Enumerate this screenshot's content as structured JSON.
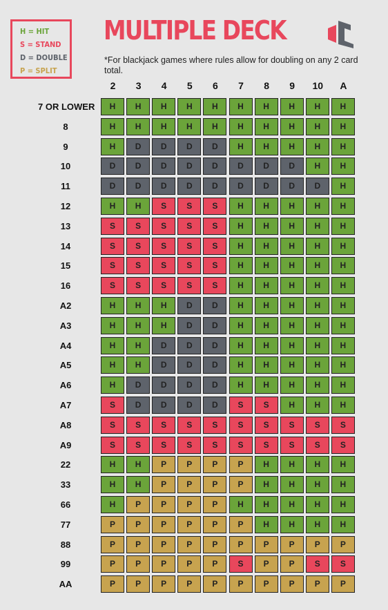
{
  "legend": [
    {
      "text": "H = HIT",
      "color": "#6ba43a"
    },
    {
      "text": "S = STAND",
      "color": "#e8475c"
    },
    {
      "text": "D = DOUBLE",
      "color": "#5e636b"
    },
    {
      "text": "P = SPLIT",
      "color": "#c7a34f"
    }
  ],
  "title": "MULTIPLE DECK",
  "note": "*For blackjack games where rules allow for doubling on any 2 card total.",
  "colors": {
    "H": "#6ba43a",
    "S": "#e8475c",
    "D": "#5e636b",
    "P": "#c7a34f"
  },
  "columns": [
    "2",
    "3",
    "4",
    "5",
    "6",
    "7",
    "8",
    "9",
    "10",
    "A"
  ],
  "rows": [
    {
      "label": "7 OR LOWER",
      "cells": [
        "H",
        "H",
        "H",
        "H",
        "H",
        "H",
        "H",
        "H",
        "H",
        "H"
      ]
    },
    {
      "label": "8",
      "cells": [
        "H",
        "H",
        "H",
        "H",
        "H",
        "H",
        "H",
        "H",
        "H",
        "H"
      ]
    },
    {
      "label": "9",
      "cells": [
        "H",
        "D",
        "D",
        "D",
        "D",
        "H",
        "H",
        "H",
        "H",
        "H"
      ]
    },
    {
      "label": "10",
      "cells": [
        "D",
        "D",
        "D",
        "D",
        "D",
        "D",
        "D",
        "D",
        "H",
        "H"
      ]
    },
    {
      "label": "11",
      "cells": [
        "D",
        "D",
        "D",
        "D",
        "D",
        "D",
        "D",
        "D",
        "D",
        "H"
      ]
    },
    {
      "label": "12",
      "cells": [
        "H",
        "H",
        "S",
        "S",
        "S",
        "H",
        "H",
        "H",
        "H",
        "H"
      ]
    },
    {
      "label": "13",
      "cells": [
        "S",
        "S",
        "S",
        "S",
        "S",
        "H",
        "H",
        "H",
        "H",
        "H"
      ]
    },
    {
      "label": "14",
      "cells": [
        "S",
        "S",
        "S",
        "S",
        "S",
        "H",
        "H",
        "H",
        "H",
        "H"
      ]
    },
    {
      "label": "15",
      "cells": [
        "S",
        "S",
        "S",
        "S",
        "S",
        "H",
        "H",
        "H",
        "H",
        "H"
      ]
    },
    {
      "label": "16",
      "cells": [
        "S",
        "S",
        "S",
        "S",
        "S",
        "H",
        "H",
        "H",
        "H",
        "H"
      ]
    },
    {
      "label": "A2",
      "cells": [
        "H",
        "H",
        "H",
        "D",
        "D",
        "H",
        "H",
        "H",
        "H",
        "H"
      ]
    },
    {
      "label": "A3",
      "cells": [
        "H",
        "H",
        "H",
        "D",
        "D",
        "H",
        "H",
        "H",
        "H",
        "H"
      ]
    },
    {
      "label": "A4",
      "cells": [
        "H",
        "H",
        "D",
        "D",
        "D",
        "H",
        "H",
        "H",
        "H",
        "H"
      ]
    },
    {
      "label": "A5",
      "cells": [
        "H",
        "H",
        "D",
        "D",
        "D",
        "H",
        "H",
        "H",
        "H",
        "H"
      ]
    },
    {
      "label": "A6",
      "cells": [
        "H",
        "D",
        "D",
        "D",
        "D",
        "H",
        "H",
        "H",
        "H",
        "H"
      ]
    },
    {
      "label": "A7",
      "cells": [
        "S",
        "D",
        "D",
        "D",
        "D",
        "S",
        "S",
        "H",
        "H",
        "H"
      ]
    },
    {
      "label": "A8",
      "cells": [
        "S",
        "S",
        "S",
        "S",
        "S",
        "S",
        "S",
        "S",
        "S",
        "S"
      ]
    },
    {
      "label": "A9",
      "cells": [
        "S",
        "S",
        "S",
        "S",
        "S",
        "S",
        "S",
        "S",
        "S",
        "S"
      ]
    },
    {
      "label": "22",
      "cells": [
        "H",
        "H",
        "P",
        "P",
        "P",
        "P",
        "H",
        "H",
        "H",
        "H"
      ]
    },
    {
      "label": "33",
      "cells": [
        "H",
        "H",
        "P",
        "P",
        "P",
        "P",
        "H",
        "H",
        "H",
        "H"
      ]
    },
    {
      "label": "66",
      "cells": [
        "H",
        "P",
        "P",
        "P",
        "P",
        "H",
        "H",
        "H",
        "H",
        "H"
      ]
    },
    {
      "label": "77",
      "cells": [
        "P",
        "P",
        "P",
        "P",
        "P",
        "P",
        "H",
        "H",
        "H",
        "H"
      ]
    },
    {
      "label": "88",
      "cells": [
        "P",
        "P",
        "P",
        "P",
        "P",
        "P",
        "P",
        "P",
        "P",
        "P"
      ]
    },
    {
      "label": "99",
      "cells": [
        "P",
        "P",
        "P",
        "P",
        "P",
        "S",
        "P",
        "P",
        "S",
        "S"
      ]
    },
    {
      "label": "AA",
      "cells": [
        "P",
        "P",
        "P",
        "P",
        "P",
        "P",
        "P",
        "P",
        "P",
        "P"
      ]
    }
  ]
}
